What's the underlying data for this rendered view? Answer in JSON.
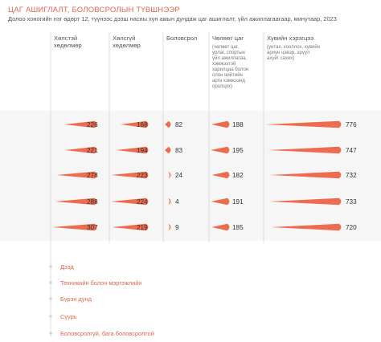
{
  "title": "ЦАГ АШИГЛАЛТ, БОЛОВСРОЛЫН ТҮВШНЭЭР",
  "subtitle": "Долоо хоногийн нэг өдөрт 12, түүнээс дээш насны хүн амын дундаж цаг ашиглалт, үйл ажиллагаагаар, минутаар, 2023",
  "chart_data": {
    "type": "bar",
    "title": "ЦАГ АШИГЛАЛТ, БОЛОВСРОЛЫН ТҮВШНЭЭР",
    "categories": [
      "Дээд",
      "Техникийн болон мэргэжлийн",
      "Бүрэн дунд",
      "Суурь",
      "Боловсролгүй, бага боловсролтой"
    ],
    "series": [
      {
        "name": "Хөлстэй хөдөлмөр",
        "note": "",
        "values": [
          226,
          221,
          278,
          288,
          307
        ]
      },
      {
        "name": "Хөлсгүй хөдөлмөр",
        "note": "",
        "values": [
          168,
          194,
          223,
          224,
          219
        ]
      },
      {
        "name": "Боловсрол",
        "note": "",
        "values": [
          82,
          83,
          24,
          4,
          9
        ]
      },
      {
        "name": "Чөлөөт цаг",
        "note": "(чөлөөт цаг, урлаг, спортын үйл ажиллагаа, хэмжээтэй харилцаа болон олон нийтийн арга хэмжээнд оролцох)",
        "values": [
          188,
          195,
          182,
          191,
          185
        ]
      },
      {
        "name": "Хувийн хэрэгцээ",
        "note": "(унтах, хооллох, хувийн ариун цэвэр, эрүүл ахуйг сахих)",
        "values": [
          776,
          747,
          732,
          733,
          720
        ]
      }
    ],
    "color": "#ee6b4d",
    "category_color": "#e3664d"
  }
}
